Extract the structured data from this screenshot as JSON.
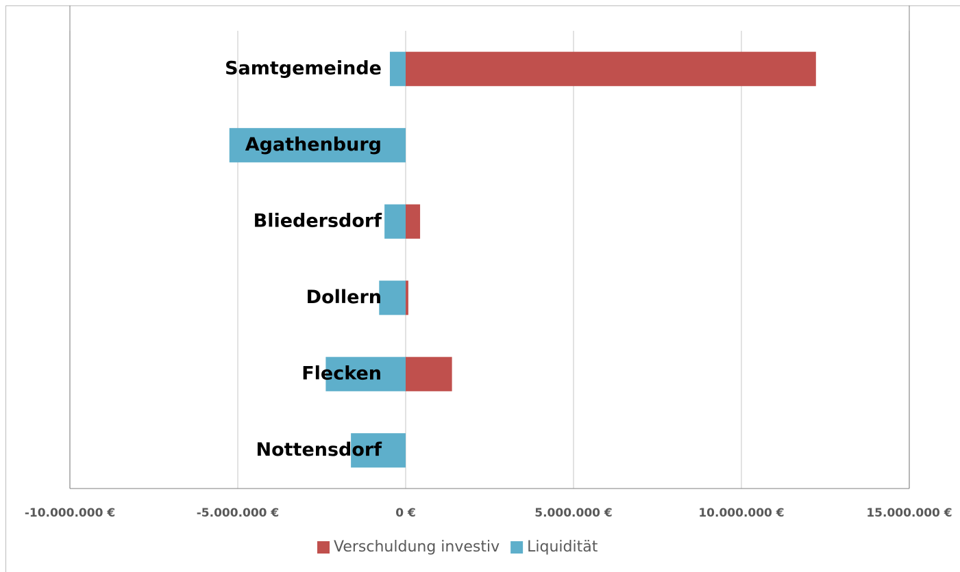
{
  "chart_data": {
    "type": "hbar_stacked",
    "categories": [
      "Samtgemeinde",
      "Agathenburg",
      "Bliedersdorf",
      "Dollern",
      "Flecken",
      "Nottensdorf"
    ],
    "series": [
      {
        "name": "Verschuldung investiv",
        "color": "#c0504d",
        "values": [
          12220000,
          0,
          430000,
          80000,
          1380000,
          0
        ]
      },
      {
        "name": "Liquidität",
        "color": "#5eafcb",
        "values": [
          -470000,
          -5250000,
          -630000,
          -790000,
          -2380000,
          -1630000
        ]
      }
    ],
    "xlim": [
      -10000000,
      15000000
    ],
    "xticks": [
      {
        "value": -10000000,
        "label": "-10.000.000 €"
      },
      {
        "value": -5000000,
        "label": "-5.000.000 €"
      },
      {
        "value": 0,
        "label": "0 €"
      },
      {
        "value": 5000000,
        "label": "5.000.000 €"
      },
      {
        "value": 10000000,
        "label": "10.000.000 €"
      },
      {
        "value": 15000000,
        "label": "15.000.000 €"
      }
    ],
    "grid": true,
    "legend": "bottom"
  }
}
